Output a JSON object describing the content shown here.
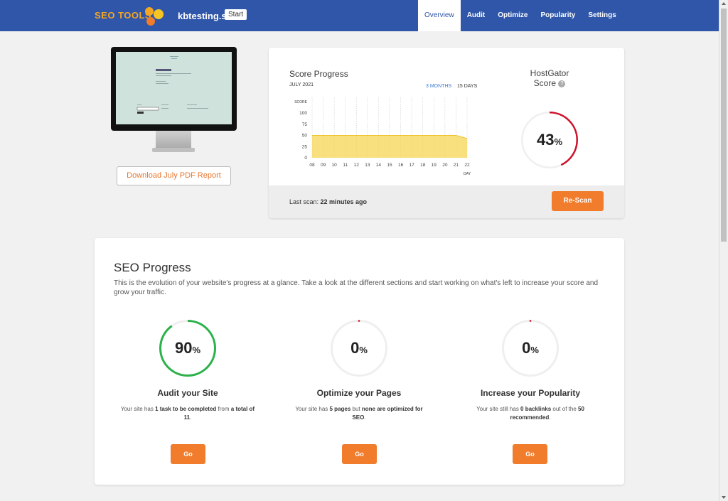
{
  "header": {
    "logo_text": "SEO TOOLS",
    "site_name": "kbtesting.site",
    "start_label": "Start",
    "nav": [
      {
        "label": "Overview",
        "active": true
      },
      {
        "label": "Audit"
      },
      {
        "label": "Optimize"
      },
      {
        "label": "Popularity"
      },
      {
        "label": "Settings"
      }
    ]
  },
  "report": {
    "download_label": "Download July PDF Report"
  },
  "score_card": {
    "title": "Score Progress",
    "month": "JULY 2021",
    "range_3m": "3 MONTHS",
    "range_15d": "15 DAYS",
    "hostgator_title_line1": "HostGator",
    "hostgator_title_line2": "Score",
    "score_value": "43",
    "score_unit": "%",
    "score_fraction": 0.43,
    "last_scan_prefix": "Last scan: ",
    "last_scan_value": "22 minutes ago",
    "rescan_label": "Re-Scan"
  },
  "chart_data": {
    "type": "area",
    "title": "Score Progress",
    "ylabel": "SCORE",
    "xlabel": "DAY",
    "ylim": [
      0,
      100
    ],
    "yticks": [
      0,
      25,
      50,
      75,
      100
    ],
    "categories": [
      "08",
      "09",
      "10",
      "11",
      "12",
      "13",
      "14",
      "15",
      "16",
      "17",
      "18",
      "19",
      "20",
      "21",
      "22"
    ],
    "values": [
      50,
      50,
      50,
      50,
      50,
      50,
      50,
      50,
      50,
      50,
      50,
      50,
      50,
      50,
      43
    ],
    "color": "#f7d653",
    "grid": true
  },
  "seo_progress": {
    "title": "SEO Progress",
    "description": "This is the evolution of your website's progress at a glance. Take a look at the different sections and start working on what's left to increase your score and grow your traffic.",
    "items": [
      {
        "value": "90",
        "unit": "%",
        "fraction": 0.9,
        "color": "#2db24b",
        "title": "Audit your Site",
        "text_a": "Your site has ",
        "bold_a": "1 task to be completed",
        "text_b": " from ",
        "bold_b": "a total of 11",
        "text_c": ".",
        "go_label": "Go"
      },
      {
        "value": "0",
        "unit": "%",
        "fraction": 0,
        "color": "#d0112b",
        "title": "Optimize your Pages",
        "text_a": "Your site has ",
        "bold_a": "5 pages",
        "text_b": " but ",
        "bold_b": "none are optimized for SEO",
        "text_c": ".",
        "go_label": "Go"
      },
      {
        "value": "0",
        "unit": "%",
        "fraction": 0,
        "color": "#d0112b",
        "title": "Increase your Popularity",
        "text_a": "Your site still has ",
        "bold_a": "0 backlinks",
        "text_b": " out of the ",
        "bold_b": "50 recommended",
        "text_c": ".",
        "go_label": "Go"
      }
    ]
  },
  "colors": {
    "header_blue": "#2f56a8",
    "accent_orange": "#f07c2c",
    "score_red": "#d0112b"
  }
}
